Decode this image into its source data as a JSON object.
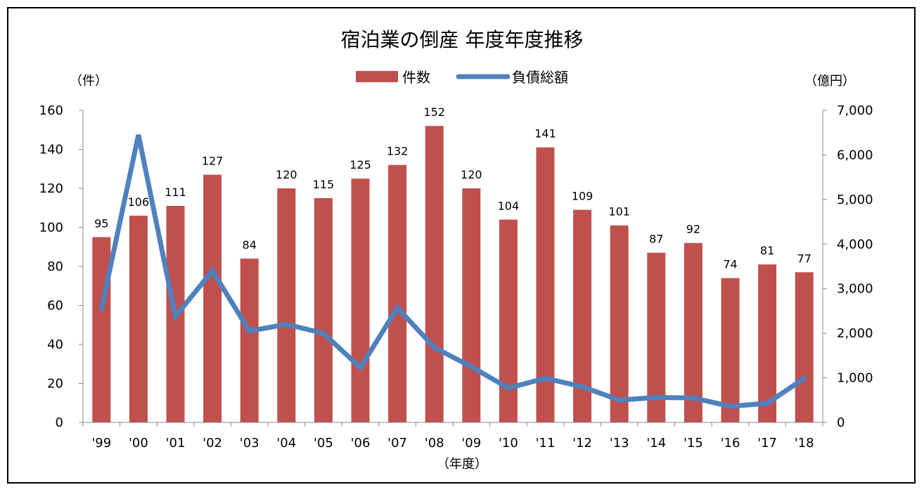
{
  "chart_data": {
    "type": "bar",
    "title": "宿泊業の倒産 年度年度推移",
    "xlabel": "（年度）",
    "ylabel": "（件）",
    "ylabel_right": "（億円）",
    "categories": [
      "'99",
      "'00",
      "'01",
      "'02",
      "'03",
      "'04",
      "'05",
      "'06",
      "'07",
      "'08",
      "'09",
      "'10",
      "'11",
      "'12",
      "'13",
      "'14",
      "'15",
      "'16",
      "'17",
      "'18"
    ],
    "series": [
      {
        "name": "件数",
        "type": "bar",
        "axis": "left",
        "color": "#c0504d",
        "values": [
          95,
          106,
          111,
          127,
          84,
          120,
          115,
          125,
          132,
          152,
          120,
          104,
          141,
          109,
          101,
          87,
          92,
          74,
          81,
          77
        ]
      },
      {
        "name": "負債総額",
        "type": "line",
        "axis": "right",
        "color": "#4f81bd",
        "values": [
          2550,
          6450,
          2380,
          3400,
          2050,
          2200,
          2000,
          1230,
          2570,
          1680,
          1250,
          770,
          990,
          800,
          500,
          560,
          550,
          360,
          430,
          990
        ]
      }
    ],
    "ylim": [
      0,
      160
    ],
    "yticks": [
      "0",
      "20",
      "40",
      "60",
      "80",
      "100",
      "120",
      "140",
      "160"
    ],
    "ylim_right": [
      0,
      7000
    ],
    "yticks_right": [
      "0",
      "1,000",
      "2,000",
      "3,000",
      "4,000",
      "5,000",
      "6,000",
      "7,000"
    ],
    "legend": "top-center",
    "grid": false
  }
}
